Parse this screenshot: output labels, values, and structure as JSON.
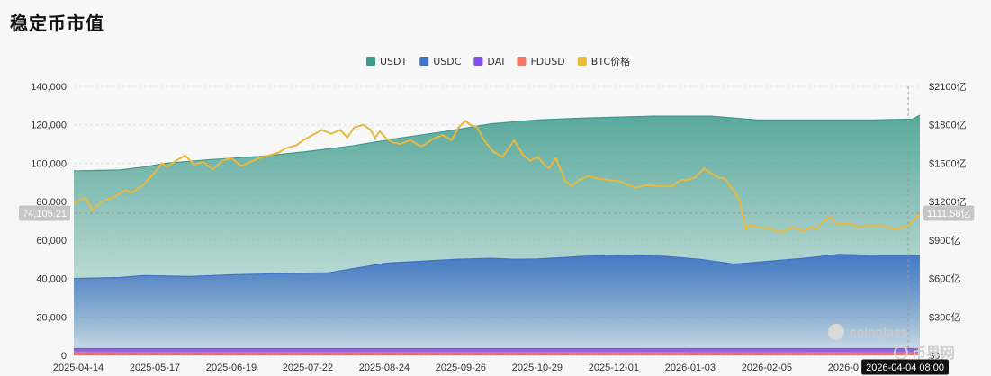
{
  "page": {
    "title": "稳定币市值"
  },
  "colors": {
    "usdt": "#3d9b8c",
    "usdc": "#3f74c4",
    "dai": "#8250e8",
    "fdusd": "#ee7766",
    "btc": "#e9b93e"
  },
  "watermark": {
    "brand": "coinglass",
    "site": "币界网"
  },
  "tooltip": {
    "left_value": "74,105.21",
    "right_value": "1111.58亿",
    "date": "2026-04-04 08:00"
  },
  "chart_data": {
    "type": "area",
    "legend": [
      {
        "key": "usdt",
        "label": "USDT",
        "color": "#3d9b8c"
      },
      {
        "key": "usdc",
        "label": "USDC",
        "color": "#3f74c4"
      },
      {
        "key": "dai",
        "label": "DAI",
        "color": "#8250e8"
      },
      {
        "key": "fdusd",
        "label": "FDUSD",
        "color": "#ee7766"
      },
      {
        "key": "btc",
        "label": "BTC价格",
        "color": "#e9b93e"
      }
    ],
    "x_ticks": [
      "2025-04-14",
      "2025-05-17",
      "2025-06-19",
      "2025-07-22",
      "2025-08-24",
      "2025-09-26",
      "2025-10-29",
      "2025-12-01",
      "2026-01-03",
      "2026-02-05",
      "2026-0"
    ],
    "y_left_ticks": [
      "0",
      "20,000",
      "40,000",
      "60,000",
      "80,000",
      "100,000",
      "120,000",
      "140,000"
    ],
    "y_right_ticks": [
      "$0",
      "$300亿",
      "$600亿",
      "$900亿",
      "$1200亿",
      "$1500亿",
      "$1800亿",
      "$2100亿"
    ],
    "ylim_left": [
      0,
      140000
    ],
    "ylim_right": [
      0,
      2100
    ],
    "x_range_days": [
      0,
      365
    ],
    "x_tick_days": [
      0,
      33,
      66,
      99,
      132,
      165,
      198,
      231,
      264,
      297,
      330
    ],
    "cursor_day": 360,
    "series": [
      {
        "name": "USDT",
        "key": "usdt",
        "type": "area",
        "axis": "left",
        "points": [
          [
            0,
            96000
          ],
          [
            20,
            96500
          ],
          [
            30,
            98000
          ],
          [
            40,
            100000
          ],
          [
            60,
            102000
          ],
          [
            80,
            103500
          ],
          [
            100,
            106000
          ],
          [
            120,
            109000
          ],
          [
            140,
            113000
          ],
          [
            160,
            116500
          ],
          [
            180,
            120500
          ],
          [
            200,
            122500
          ],
          [
            220,
            123500
          ],
          [
            250,
            124500
          ],
          [
            275,
            124500
          ],
          [
            285,
            123500
          ],
          [
            295,
            122500
          ],
          [
            320,
            122500
          ],
          [
            345,
            122500
          ],
          [
            362,
            123000
          ],
          [
            365,
            125000
          ]
        ]
      },
      {
        "name": "USDC",
        "key": "usdc",
        "type": "area",
        "axis": "left",
        "points": [
          [
            0,
            40000
          ],
          [
            20,
            40500
          ],
          [
            30,
            41500
          ],
          [
            50,
            41000
          ],
          [
            70,
            42000
          ],
          [
            90,
            42500
          ],
          [
            110,
            43000
          ],
          [
            120,
            45000
          ],
          [
            135,
            48000
          ],
          [
            150,
            49000
          ],
          [
            165,
            50000
          ],
          [
            180,
            50500
          ],
          [
            190,
            50000
          ],
          [
            200,
            50200
          ],
          [
            220,
            51500
          ],
          [
            235,
            52000
          ],
          [
            255,
            51500
          ],
          [
            270,
            50000
          ],
          [
            285,
            47500
          ],
          [
            300,
            49000
          ],
          [
            315,
            50500
          ],
          [
            330,
            52500
          ],
          [
            345,
            52000
          ],
          [
            365,
            52000
          ]
        ]
      },
      {
        "name": "DAI",
        "key": "dai",
        "type": "area",
        "axis": "left",
        "points": [
          [
            0,
            3500
          ],
          [
            365,
            3500
          ]
        ]
      },
      {
        "name": "FDUSD",
        "key": "fdusd",
        "type": "area",
        "axis": "left",
        "points": [
          [
            0,
            1700
          ],
          [
            365,
            1500
          ]
        ]
      },
      {
        "name": "BTC价格",
        "key": "btc",
        "type": "line",
        "axis": "right",
        "points": [
          [
            0,
            1190
          ],
          [
            5,
            1230
          ],
          [
            8,
            1130
          ],
          [
            12,
            1200
          ],
          [
            18,
            1240
          ],
          [
            22,
            1290
          ],
          [
            25,
            1270
          ],
          [
            30,
            1330
          ],
          [
            33,
            1390
          ],
          [
            36,
            1450
          ],
          [
            38,
            1500
          ],
          [
            40,
            1470
          ],
          [
            45,
            1530
          ],
          [
            48,
            1560
          ],
          [
            52,
            1490
          ],
          [
            56,
            1510
          ],
          [
            60,
            1450
          ],
          [
            64,
            1520
          ],
          [
            68,
            1540
          ],
          [
            72,
            1480
          ],
          [
            75,
            1500
          ],
          [
            80,
            1540
          ],
          [
            84,
            1560
          ],
          [
            88,
            1580
          ],
          [
            92,
            1620
          ],
          [
            96,
            1640
          ],
          [
            99,
            1680
          ],
          [
            103,
            1720
          ],
          [
            107,
            1760
          ],
          [
            111,
            1730
          ],
          [
            115,
            1760
          ],
          [
            118,
            1700
          ],
          [
            121,
            1780
          ],
          [
            125,
            1800
          ],
          [
            128,
            1760
          ],
          [
            130,
            1700
          ],
          [
            132,
            1750
          ],
          [
            135,
            1690
          ],
          [
            138,
            1660
          ],
          [
            141,
            1650
          ],
          [
            145,
            1680
          ],
          [
            150,
            1630
          ],
          [
            155,
            1690
          ],
          [
            159,
            1720
          ],
          [
            163,
            1680
          ],
          [
            166,
            1780
          ],
          [
            169,
            1830
          ],
          [
            171,
            1800
          ],
          [
            174,
            1780
          ],
          [
            177,
            1680
          ],
          [
            181,
            1590
          ],
          [
            185,
            1550
          ],
          [
            190,
            1680
          ],
          [
            194,
            1560
          ],
          [
            197,
            1520
          ],
          [
            200,
            1550
          ],
          [
            203,
            1490
          ],
          [
            205,
            1460
          ],
          [
            208,
            1540
          ],
          [
            212,
            1360
          ],
          [
            215,
            1320
          ],
          [
            218,
            1370
          ],
          [
            222,
            1400
          ],
          [
            226,
            1380
          ],
          [
            230,
            1370
          ],
          [
            235,
            1360
          ],
          [
            238,
            1340
          ],
          [
            242,
            1310
          ],
          [
            248,
            1330
          ],
          [
            253,
            1320
          ],
          [
            258,
            1320
          ],
          [
            262,
            1370
          ],
          [
            265,
            1370
          ],
          [
            268,
            1390
          ],
          [
            272,
            1460
          ],
          [
            275,
            1420
          ],
          [
            278,
            1390
          ],
          [
            281,
            1380
          ],
          [
            284,
            1300
          ],
          [
            286,
            1260
          ],
          [
            288,
            1160
          ],
          [
            290,
            980
          ],
          [
            292,
            1020
          ],
          [
            295,
            1000
          ],
          [
            300,
            990
          ],
          [
            305,
            960
          ],
          [
            310,
            1000
          ],
          [
            315,
            970
          ],
          [
            318,
            1000
          ],
          [
            320,
            980
          ],
          [
            323,
            1040
          ],
          [
            326,
            1080
          ],
          [
            330,
            1020
          ],
          [
            335,
            1030
          ],
          [
            338,
            1000
          ],
          [
            342,
            1010
          ],
          [
            346,
            1010
          ],
          [
            350,
            1010
          ],
          [
            354,
            980
          ],
          [
            358,
            1000
          ],
          [
            362,
            1040
          ],
          [
            365,
            1110
          ]
        ]
      }
    ]
  }
}
